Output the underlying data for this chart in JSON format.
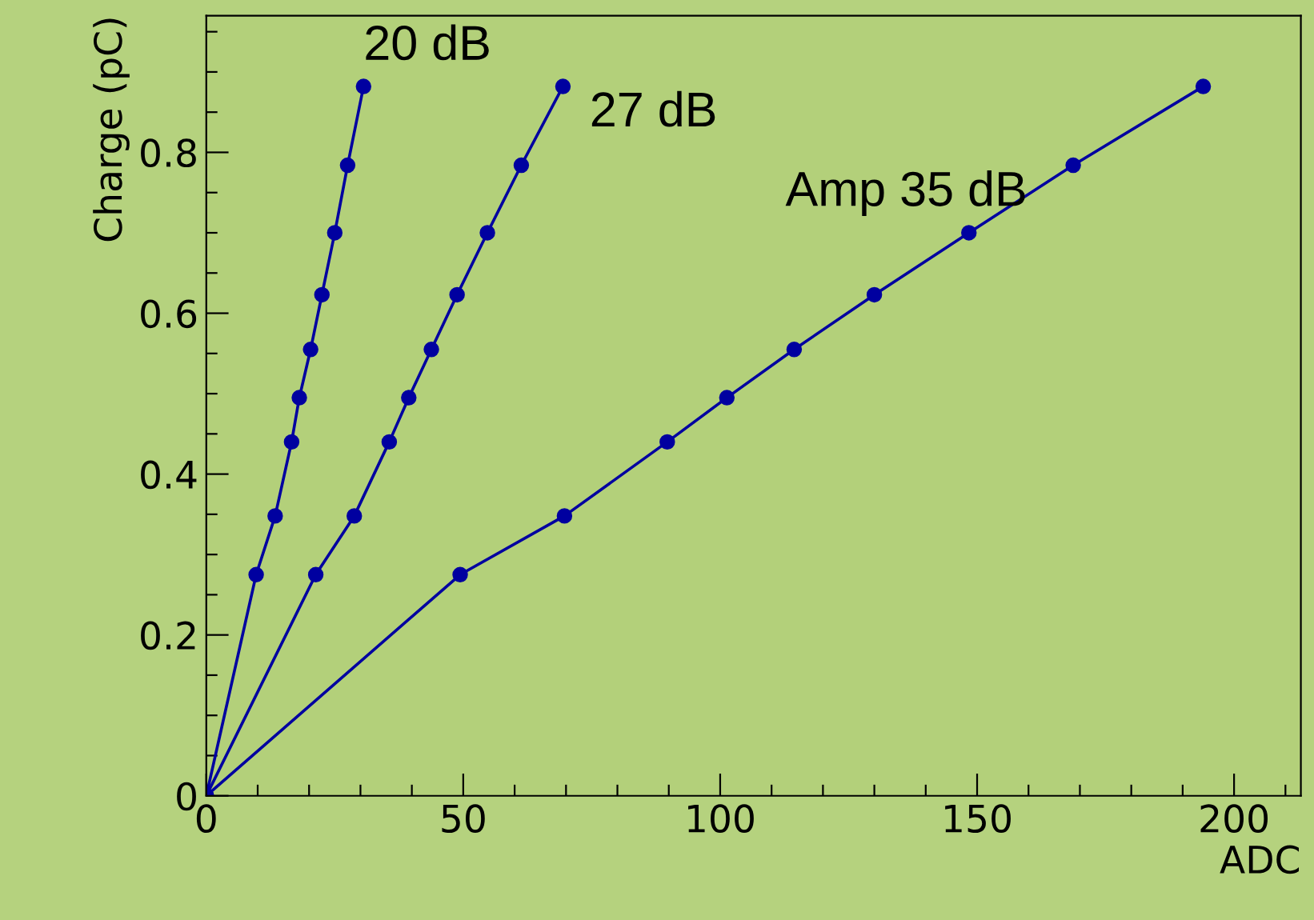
{
  "chart_data": {
    "type": "line",
    "xlabel": "ADC",
    "ylabel": "Charge (pC)",
    "marker": "circle",
    "line_style": "solid",
    "grid": false,
    "legend": false,
    "xlim": [
      0,
      213
    ],
    "ylim": [
      0,
      0.97
    ],
    "xticks": [
      0,
      {
        "value": 10,
        "label": null
      },
      {
        "value": 20,
        "label": null
      },
      {
        "value": 30,
        "label": null
      },
      {
        "value": 40,
        "label": null
      },
      50,
      {
        "value": 60,
        "label": null
      },
      {
        "value": 70,
        "label": null
      },
      {
        "value": 80,
        "label": null
      },
      {
        "value": 90,
        "label": null
      },
      100,
      {
        "value": 110,
        "label": null
      },
      {
        "value": 120,
        "label": null
      },
      {
        "value": 130,
        "label": null
      },
      {
        "value": 140,
        "label": null
      },
      150,
      {
        "value": 160,
        "label": null
      },
      {
        "value": 170,
        "label": null
      },
      {
        "value": 180,
        "label": null
      },
      {
        "value": 190,
        "label": null
      },
      200,
      {
        "value": 210,
        "label": null
      }
    ],
    "yticks": [
      0,
      {
        "value": 0.05,
        "label": null
      },
      {
        "value": 0.1,
        "label": null
      },
      {
        "value": 0.15,
        "label": null
      },
      0.2,
      {
        "value": 0.25,
        "label": null
      },
      {
        "value": 0.3,
        "label": null
      },
      {
        "value": 0.35,
        "label": null
      },
      0.4,
      {
        "value": 0.45,
        "label": null
      },
      {
        "value": 0.5,
        "label": null
      },
      {
        "value": 0.55,
        "label": null
      },
      0.6,
      {
        "value": 0.65,
        "label": null
      },
      {
        "value": 0.7,
        "label": null
      },
      {
        "value": 0.75,
        "label": null
      },
      0.8,
      {
        "value": 0.85,
        "label": null
      },
      {
        "value": 0.9,
        "label": null
      },
      {
        "value": 0.95,
        "label": null
      }
    ],
    "series": [
      {
        "color": "#0000a0",
        "x": [
          0,
          9.7,
          13.4,
          16.6,
          18.1,
          20.3,
          22.5,
          25,
          27.5,
          30.6
        ],
        "values": [
          0,
          0.275,
          0.348,
          0.44,
          0.495,
          0.555,
          0.623,
          0.7,
          0.784,
          0.882
        ]
      },
      {
        "color": "#0000a0",
        "x": [
          0,
          21.3,
          28.8,
          35.6,
          39.4,
          43.8,
          48.8,
          54.7,
          61.3,
          69.4
        ],
        "values": [
          0,
          0.275,
          0.348,
          0.44,
          0.495,
          0.555,
          0.623,
          0.7,
          0.784,
          0.882
        ]
      },
      {
        "color": "#0000a0",
        "x": [
          0,
          49.4,
          69.7,
          89.7,
          101.3,
          114.4,
          130,
          148.4,
          168.7,
          194
        ],
        "values": [
          0,
          0.275,
          0.348,
          0.44,
          0.495,
          0.555,
          0.623,
          0.7,
          0.784,
          0.882
        ]
      }
    ],
    "annotations": [
      {
        "text": "20 dB",
        "x": 30.6,
        "y": 0.882
      },
      {
        "text": "27 dB",
        "x": 69.4,
        "y": 0.882
      },
      {
        "text": "Amp 35 dB",
        "x": 130,
        "y": 0.623
      }
    ]
  }
}
